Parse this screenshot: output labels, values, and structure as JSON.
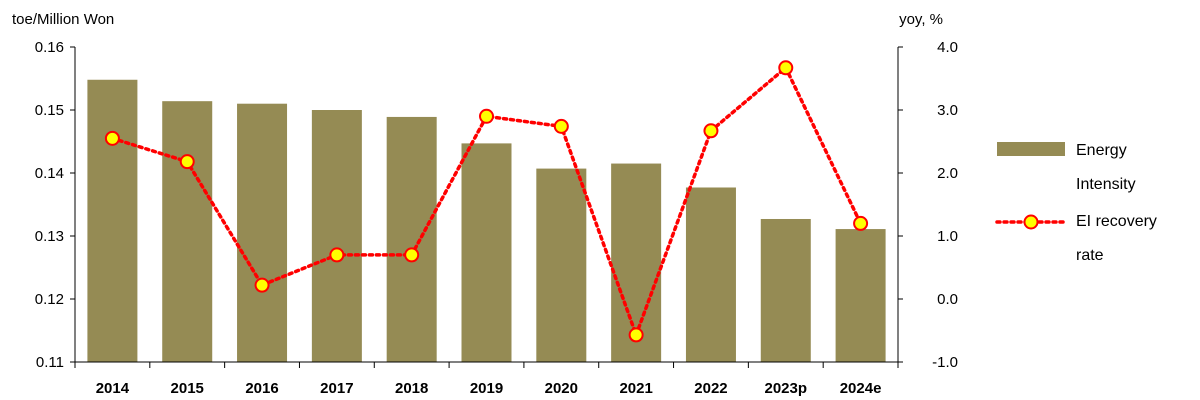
{
  "chart_data": {
    "type": "bar",
    "categories": [
      "2014",
      "2015",
      "2016",
      "2017",
      "2018",
      "2019",
      "2020",
      "2021",
      "2022",
      "2023p",
      "2024e"
    ],
    "series": [
      {
        "name": "Energy Intensity",
        "type": "bar",
        "axis": "left",
        "color": "#958B54",
        "values": [
          0.1548,
          0.1514,
          0.151,
          0.15,
          0.1489,
          0.1447,
          0.1407,
          0.1415,
          0.1377,
          0.1327,
          0.1311
        ]
      },
      {
        "name": "EI recovery rate",
        "type": "line",
        "axis": "right",
        "color": "#FF0000",
        "marker_fill": "#FFFF00",
        "values": [
          2.55,
          2.18,
          0.22,
          0.7,
          0.7,
          2.9,
          2.74,
          -0.57,
          2.67,
          3.67,
          1.2
        ]
      }
    ],
    "y_left": {
      "label": "toe/Million Won",
      "ylim": [
        0.11,
        0.16
      ],
      "ticks": [
        "0.16",
        "0.15",
        "0.14",
        "0.13",
        "0.12",
        "0.11"
      ]
    },
    "y_right": {
      "label": "yoy, %",
      "ylim": [
        -1.0,
        4.0
      ],
      "ticks": [
        "4.0",
        "3.0",
        "2.0",
        "1.0",
        "0.0",
        "-1.0"
      ]
    },
    "legend": {
      "position": "right",
      "bar_label_lines": [
        "Energy",
        "Intensity"
      ],
      "line_label_lines": [
        "EI recovery",
        "rate"
      ]
    },
    "grid": false
  }
}
